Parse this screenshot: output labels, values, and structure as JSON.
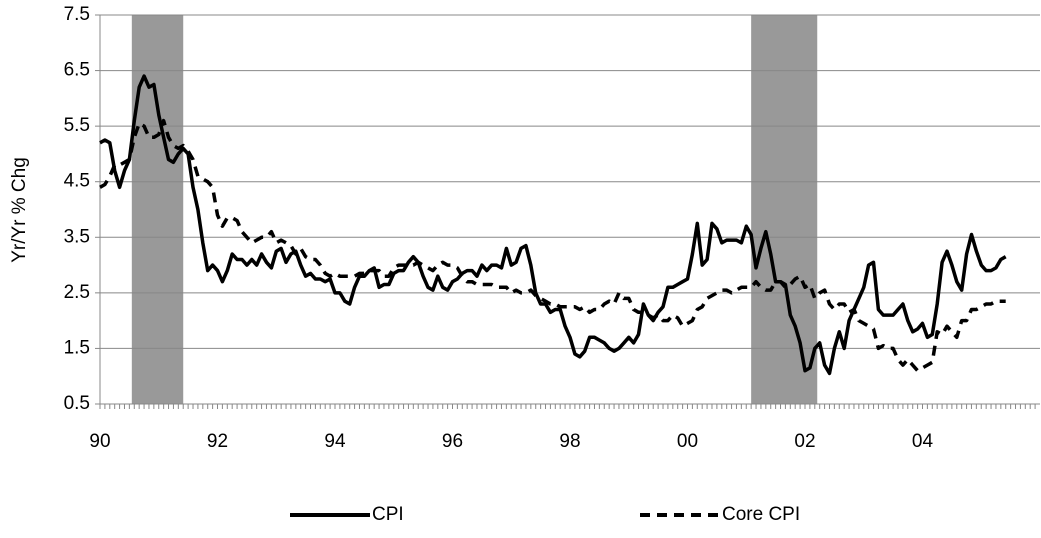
{
  "chart_data": {
    "type": "line",
    "y_label": "Yr/Yr % Chg",
    "categories": [
      "90",
      null,
      null,
      null,
      null,
      null,
      null,
      null,
      null,
      null,
      null,
      null,
      null,
      null,
      null,
      null,
      null,
      null,
      null,
      null,
      null,
      null,
      null,
      null,
      "92",
      null,
      null,
      null,
      null,
      null,
      null,
      null,
      null,
      null,
      null,
      null,
      null,
      null,
      null,
      null,
      null,
      null,
      null,
      null,
      null,
      null,
      null,
      null,
      "94",
      null,
      null,
      null,
      null,
      null,
      null,
      null,
      null,
      null,
      null,
      null,
      null,
      null,
      null,
      null,
      null,
      null,
      null,
      null,
      null,
      null,
      null,
      null,
      "96",
      null,
      null,
      null,
      null,
      null,
      null,
      null,
      null,
      null,
      null,
      null,
      null,
      null,
      null,
      null,
      null,
      null,
      null,
      null,
      null,
      null,
      null,
      null,
      "98",
      null,
      null,
      null,
      null,
      null,
      null,
      null,
      null,
      null,
      null,
      null,
      null,
      null,
      null,
      null,
      null,
      null,
      null,
      null,
      null,
      null,
      null,
      null,
      "00",
      null,
      null,
      null,
      null,
      null,
      null,
      null,
      null,
      null,
      null,
      null,
      null,
      null,
      null,
      null,
      null,
      null,
      null,
      null,
      null,
      null,
      null,
      null,
      "02",
      null,
      null,
      null,
      null,
      null,
      null,
      null,
      null,
      null,
      null,
      null,
      null,
      null,
      null,
      null,
      null,
      null,
      null,
      null,
      null,
      null,
      null,
      null,
      "04",
      null,
      null,
      null,
      null,
      null,
      null,
      null,
      null,
      null,
      null,
      null,
      null,
      null,
      null,
      null,
      null,
      null,
      null,
      null,
      null,
      null,
      null,
      null
    ],
    "series": [
      {
        "name": "CPI",
        "color": "#000000",
        "dash": "solid",
        "values": [
          5.2,
          5.25,
          5.2,
          4.7,
          4.4,
          4.7,
          4.9,
          5.6,
          6.2,
          6.4,
          6.2,
          6.25,
          5.7,
          5.3,
          4.9,
          4.85,
          5.0,
          5.1,
          5.0,
          4.4,
          4.0,
          3.4,
          2.9,
          3.0,
          2.9,
          2.7,
          2.9,
          3.2,
          3.1,
          3.1,
          3.0,
          3.1,
          3.0,
          3.2,
          3.05,
          2.95,
          3.25,
          3.3,
          3.05,
          3.2,
          3.25,
          3.0,
          2.8,
          2.85,
          2.75,
          2.75,
          2.7,
          2.75,
          2.5,
          2.5,
          2.35,
          2.3,
          2.6,
          2.8,
          2.8,
          2.9,
          2.95,
          2.6,
          2.65,
          2.65,
          2.85,
          2.9,
          2.9,
          3.05,
          3.15,
          3.05,
          2.8,
          2.6,
          2.55,
          2.8,
          2.6,
          2.55,
          2.7,
          2.75,
          2.85,
          2.9,
          2.9,
          2.8,
          3.0,
          2.9,
          3.0,
          3.0,
          2.95,
          3.3,
          3.0,
          3.05,
          3.3,
          3.35,
          3.0,
          2.5,
          2.3,
          2.3,
          2.15,
          2.2,
          2.2,
          1.9,
          1.7,
          1.4,
          1.35,
          1.45,
          1.7,
          1.7,
          1.65,
          1.6,
          1.5,
          1.45,
          1.5,
          1.6,
          1.7,
          1.6,
          1.75,
          2.3,
          2.1,
          2.0,
          2.15,
          2.25,
          2.6,
          2.6,
          2.65,
          2.7,
          2.75,
          3.2,
          3.75,
          3.0,
          3.1,
          3.75,
          3.65,
          3.4,
          3.45,
          3.45,
          3.45,
          3.4,
          3.7,
          3.55,
          2.95,
          3.3,
          3.6,
          3.2,
          2.7,
          2.7,
          2.65,
          2.1,
          1.9,
          1.6,
          1.1,
          1.15,
          1.5,
          1.6,
          1.2,
          1.05,
          1.5,
          1.8,
          1.5,
          2.0,
          2.2,
          2.4,
          2.6,
          3.0,
          3.05,
          2.2,
          2.1,
          2.1,
          2.1,
          2.2,
          2.3,
          2.0,
          1.8,
          1.85,
          1.95,
          1.7,
          1.75,
          2.3,
          3.05,
          3.25,
          3.0,
          2.7,
          2.55,
          3.2,
          3.55,
          3.25,
          3.0,
          2.9,
          2.9,
          2.95,
          3.1,
          3.15,
          null,
          null,
          null,
          null,
          null,
          null
        ]
      },
      {
        "name": "Core CPI",
        "color": "#000000",
        "dash": "dashed",
        "values": [
          4.4,
          4.45,
          4.6,
          4.8,
          4.8,
          4.85,
          4.9,
          5.3,
          5.55,
          5.5,
          5.3,
          5.3,
          5.35,
          5.6,
          5.3,
          5.15,
          5.1,
          5.15,
          5.05,
          4.9,
          4.6,
          4.55,
          4.5,
          4.4,
          3.9,
          3.7,
          3.85,
          3.85,
          3.8,
          3.6,
          3.5,
          3.4,
          3.45,
          3.5,
          3.5,
          3.6,
          3.4,
          3.45,
          3.4,
          3.35,
          3.2,
          3.3,
          3.15,
          3.1,
          3.1,
          3.0,
          2.85,
          2.8,
          2.85,
          2.8,
          2.8,
          2.8,
          2.8,
          2.85,
          2.85,
          2.9,
          2.9,
          2.9,
          2.8,
          2.8,
          2.95,
          3.0,
          3.0,
          3.0,
          3.0,
          3.05,
          3.0,
          2.95,
          2.9,
          3.0,
          3.05,
          3.0,
          3.0,
          2.95,
          2.8,
          2.7,
          2.7,
          2.65,
          2.65,
          2.65,
          2.65,
          2.6,
          2.6,
          2.6,
          2.5,
          2.55,
          2.5,
          2.5,
          2.55,
          2.45,
          2.4,
          2.35,
          2.3,
          2.3,
          2.25,
          2.25,
          2.25,
          2.25,
          2.2,
          2.25,
          2.15,
          2.2,
          2.2,
          2.3,
          2.35,
          2.3,
          2.5,
          2.4,
          2.4,
          2.2,
          2.15,
          2.15,
          2.1,
          2.05,
          2.1,
          2.0,
          2.0,
          2.1,
          2.05,
          1.9,
          1.95,
          2.0,
          2.2,
          2.25,
          2.4,
          2.45,
          2.5,
          2.55,
          2.55,
          2.5,
          2.55,
          2.6,
          2.6,
          2.6,
          2.7,
          2.6,
          2.55,
          2.55,
          2.7,
          2.7,
          2.6,
          2.65,
          2.75,
          2.8,
          2.6,
          2.65,
          2.4,
          2.5,
          2.55,
          2.3,
          2.2,
          2.3,
          2.3,
          2.15,
          2.2,
          2.0,
          1.95,
          1.9,
          1.85,
          1.5,
          1.55,
          1.5,
          1.5,
          1.3,
          1.2,
          1.3,
          1.2,
          1.1,
          1.15,
          1.2,
          1.25,
          1.8,
          1.75,
          1.9,
          1.8,
          1.7,
          2.0,
          2.0,
          2.2,
          2.2,
          2.25,
          2.3,
          2.3,
          2.35,
          2.35,
          2.35,
          null,
          null,
          null,
          null,
          null,
          null
        ]
      }
    ],
    "shaded_ranges": [
      [
        6.5,
        17
      ],
      [
        133,
        146.5
      ]
    ],
    "shade_color": "#999999",
    "ylim": [
      0.5,
      7.5
    ],
    "yticks": [
      0.5,
      1.5,
      2.5,
      3.5,
      4.5,
      5.5,
      6.5,
      7.5
    ],
    "grid": true,
    "legend": "bottom"
  }
}
